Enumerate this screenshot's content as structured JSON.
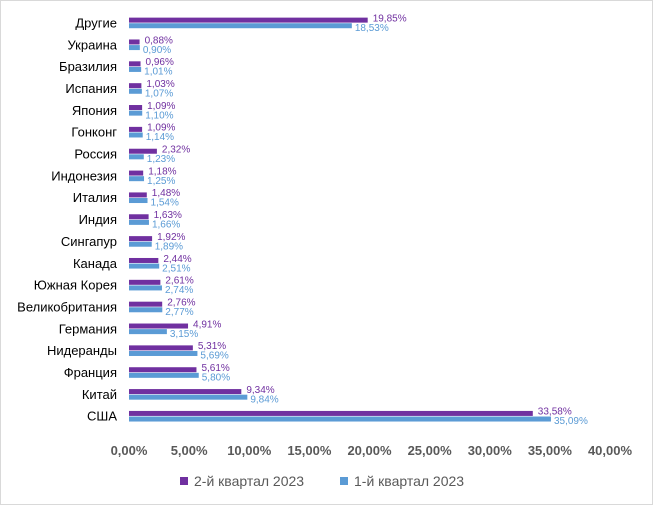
{
  "chart_data": {
    "type": "bar",
    "orientation": "horizontal",
    "categories": [
      "Другие",
      "Украина",
      "Бразилия",
      "Испания",
      "Япония",
      "Гонконг",
      "Россия",
      "Индонезия",
      "Италия",
      "Индия",
      "Сингапур",
      "Канада",
      "Южная Корея",
      "Великобритания",
      "Германия",
      "Нидеранды",
      "Франция",
      "Китай",
      "США"
    ],
    "series": [
      {
        "name": "2-й квартал 2023",
        "color": "#7030a0",
        "values": [
          19.85,
          0.88,
          0.96,
          1.03,
          1.09,
          1.09,
          2.32,
          1.18,
          1.48,
          1.63,
          1.92,
          2.44,
          2.61,
          2.76,
          4.91,
          5.31,
          5.61,
          9.34,
          33.58
        ],
        "labels": [
          "19,85%",
          "0,88%",
          "0,96%",
          "1,03%",
          "1,09%",
          "1,09%",
          "2,32%",
          "1,18%",
          "1,48%",
          "1,63%",
          "1,92%",
          "2,44%",
          "2,61%",
          "2,76%",
          "4,91%",
          "5,31%",
          "5,61%",
          "9,34%",
          "33,58%"
        ]
      },
      {
        "name": "1-й квартал 2023",
        "color": "#5b9bd5",
        "values": [
          18.53,
          0.9,
          1.01,
          1.07,
          1.1,
          1.14,
          1.23,
          1.25,
          1.54,
          1.66,
          1.89,
          2.51,
          2.74,
          2.77,
          3.15,
          5.69,
          5.8,
          9.84,
          35.09
        ],
        "labels": [
          "18,53%",
          "0,90%",
          "1,01%",
          "1,07%",
          "1,10%",
          "1,14%",
          "1,23%",
          "1,25%",
          "1,54%",
          "1,66%",
          "1,89%",
          "2,51%",
          "2,74%",
          "2,77%",
          "3,15%",
          "5,69%",
          "5,80%",
          "9,84%",
          "35,09%"
        ]
      }
    ],
    "x_ticks": [
      "0,00%",
      "5,00%",
      "10,00%",
      "15,00%",
      "20,00%",
      "25,00%",
      "30,00%",
      "35,00%",
      "40,00%"
    ],
    "xlim": [
      0,
      40
    ],
    "grid": false,
    "legend_position": "bottom"
  }
}
